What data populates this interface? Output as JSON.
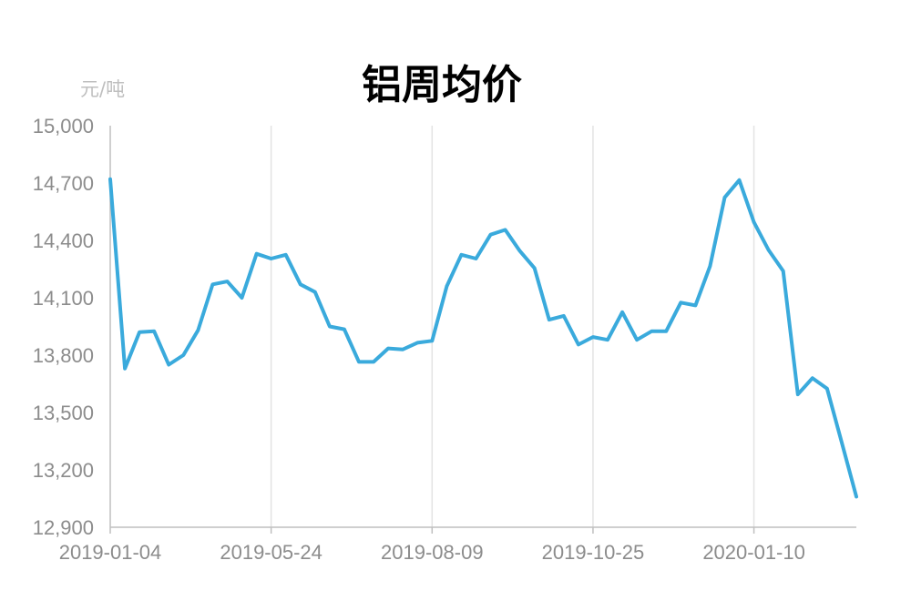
{
  "chart_data": {
    "type": "line",
    "title": "铝周均价",
    "ylabel": "元/吨",
    "xlabel": "",
    "ylim": [
      12900,
      15000
    ],
    "yticks": [
      "15,000",
      "14,700",
      "14,400",
      "14,100",
      "13,800",
      "13,500",
      "13,200",
      "12,900"
    ],
    "ytick_values": [
      15000,
      14700,
      14400,
      14100,
      13800,
      13500,
      13200,
      12900
    ],
    "xtick_labels": [
      "2019-01-04",
      "2019-05-24",
      "2019-08-09",
      "2019-10-25",
      "2020-01-10"
    ],
    "xtick_indices": [
      0,
      11,
      22,
      33,
      44
    ],
    "grid": "vertical",
    "line_color": "#3aaadc",
    "series": [
      {
        "values": [
          14720,
          13730,
          13920,
          13925,
          13750,
          13800,
          13930,
          14170,
          14185,
          14100,
          14330,
          14305,
          14325,
          14170,
          14130,
          13950,
          13935,
          13765,
          13765,
          13835,
          13830,
          13865,
          13875,
          14160,
          14325,
          14305,
          14430,
          14455,
          14345,
          14255,
          13985,
          14005,
          13855,
          13895,
          13880,
          14025,
          13880,
          13925,
          13925,
          14075,
          14060,
          14265,
          14625,
          14715,
          14495,
          14350,
          14240,
          13595,
          13680,
          13625,
          13345,
          13060
        ]
      }
    ]
  }
}
